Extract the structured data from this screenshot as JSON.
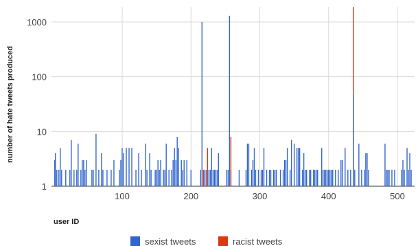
{
  "chart_data": {
    "type": "bar",
    "xlabel": "user ID",
    "ylabel": "number of hate tweets produced",
    "yscale": "log",
    "ylim": [
      1,
      2000
    ],
    "xlim": [
      1,
      522
    ],
    "x_ticks": [
      100,
      200,
      300,
      400,
      500
    ],
    "y_ticks": [
      1,
      10,
      100,
      1000
    ],
    "y_tick_labels": [
      "1",
      "10",
      "100",
      "1000"
    ],
    "grid": true,
    "legend_position": "bottom",
    "series": [
      {
        "name": "sexist tweets",
        "color": "#3366cc",
        "points": [
          [
            2,
            3
          ],
          [
            3,
            4
          ],
          [
            5,
            2
          ],
          [
            8,
            2
          ],
          [
            10,
            5
          ],
          [
            12,
            2
          ],
          [
            18,
            2
          ],
          [
            24,
            2
          ],
          [
            26,
            7
          ],
          [
            30,
            2
          ],
          [
            34,
            2
          ],
          [
            36,
            6
          ],
          [
            40,
            2
          ],
          [
            42,
            3
          ],
          [
            44,
            3
          ],
          [
            46,
            2
          ],
          [
            48,
            3
          ],
          [
            56,
            2
          ],
          [
            58,
            2
          ],
          [
            62,
            9
          ],
          [
            66,
            2
          ],
          [
            70,
            4
          ],
          [
            72,
            2
          ],
          [
            78,
            2
          ],
          [
            84,
            2
          ],
          [
            88,
            3
          ],
          [
            96,
            2
          ],
          [
            98,
            3
          ],
          [
            100,
            5
          ],
          [
            102,
            4
          ],
          [
            106,
            5
          ],
          [
            110,
            5
          ],
          [
            114,
            5
          ],
          [
            120,
            2
          ],
          [
            124,
            4
          ],
          [
            128,
            2
          ],
          [
            134,
            6
          ],
          [
            136,
            2
          ],
          [
            140,
            4
          ],
          [
            142,
            2
          ],
          [
            148,
            2
          ],
          [
            150,
            2
          ],
          [
            152,
            3
          ],
          [
            154,
            2
          ],
          [
            156,
            3
          ],
          [
            160,
            2
          ],
          [
            162,
            2
          ],
          [
            164,
            6
          ],
          [
            168,
            2
          ],
          [
            172,
            2
          ],
          [
            174,
            3
          ],
          [
            176,
            5
          ],
          [
            178,
            3
          ],
          [
            180,
            8
          ],
          [
            182,
            5
          ],
          [
            186,
            3
          ],
          [
            188,
            2
          ],
          [
            190,
            3
          ],
          [
            194,
            3
          ],
          [
            200,
            2
          ],
          [
            214,
            2
          ],
          [
            216,
            1000
          ],
          [
            220,
            2
          ],
          [
            222,
            2
          ],
          [
            226,
            2
          ],
          [
            228,
            2
          ],
          [
            230,
            5
          ],
          [
            232,
            2
          ],
          [
            234,
            2
          ],
          [
            236,
            2
          ],
          [
            238,
            2
          ],
          [
            240,
            4
          ],
          [
            252,
            2
          ],
          [
            254,
            2
          ],
          [
            256,
            1300
          ],
          [
            258,
            2
          ],
          [
            270,
            2
          ],
          [
            280,
            2
          ],
          [
            282,
            6
          ],
          [
            284,
            6
          ],
          [
            288,
            2
          ],
          [
            290,
            3
          ],
          [
            292,
            5
          ],
          [
            294,
            2
          ],
          [
            298,
            2
          ],
          [
            302,
            2
          ],
          [
            304,
            2
          ],
          [
            306,
            5
          ],
          [
            310,
            2
          ],
          [
            314,
            2
          ],
          [
            316,
            2
          ],
          [
            320,
            2
          ],
          [
            322,
            2
          ],
          [
            324,
            2
          ],
          [
            330,
            2
          ],
          [
            334,
            2
          ],
          [
            336,
            3
          ],
          [
            338,
            3
          ],
          [
            340,
            5
          ],
          [
            344,
            2
          ],
          [
            346,
            7
          ],
          [
            350,
            6
          ],
          [
            354,
            5
          ],
          [
            356,
            5
          ],
          [
            358,
            5
          ],
          [
            362,
            2
          ],
          [
            364,
            4
          ],
          [
            366,
            2
          ],
          [
            368,
            2
          ],
          [
            372,
            2
          ],
          [
            374,
            2
          ],
          [
            378,
            2
          ],
          [
            380,
            2
          ],
          [
            382,
            2
          ],
          [
            384,
            2
          ],
          [
            390,
            5
          ],
          [
            392,
            2
          ],
          [
            394,
            2
          ],
          [
            396,
            2
          ],
          [
            398,
            2
          ],
          [
            400,
            2
          ],
          [
            402,
            2
          ],
          [
            404,
            2
          ],
          [
            406,
            2
          ],
          [
            410,
            2
          ],
          [
            414,
            2
          ],
          [
            418,
            3
          ],
          [
            420,
            3
          ],
          [
            424,
            5
          ],
          [
            428,
            2
          ],
          [
            432,
            2
          ],
          [
            438,
            2
          ],
          [
            444,
            6
          ],
          [
            448,
            2
          ],
          [
            452,
            2
          ],
          [
            454,
            4
          ],
          [
            456,
            4
          ],
          [
            458,
            2
          ],
          [
            482,
            6
          ],
          [
            484,
            2
          ],
          [
            486,
            2
          ],
          [
            488,
            2
          ],
          [
            492,
            2
          ],
          [
            496,
            2
          ],
          [
            506,
            2
          ],
          [
            508,
            3
          ],
          [
            510,
            2
          ],
          [
            514,
            5
          ],
          [
            516,
            2
          ],
          [
            518,
            4
          ],
          [
            520,
            2
          ]
        ]
      },
      {
        "name": "racist tweets",
        "color": "#dc3912",
        "points": [
          [
            218,
            2
          ],
          [
            224,
            5
          ],
          [
            258,
            8
          ],
          [
            436,
            2000
          ]
        ]
      }
    ],
    "overlay_points": [
      [
        436,
        50
      ]
    ]
  }
}
